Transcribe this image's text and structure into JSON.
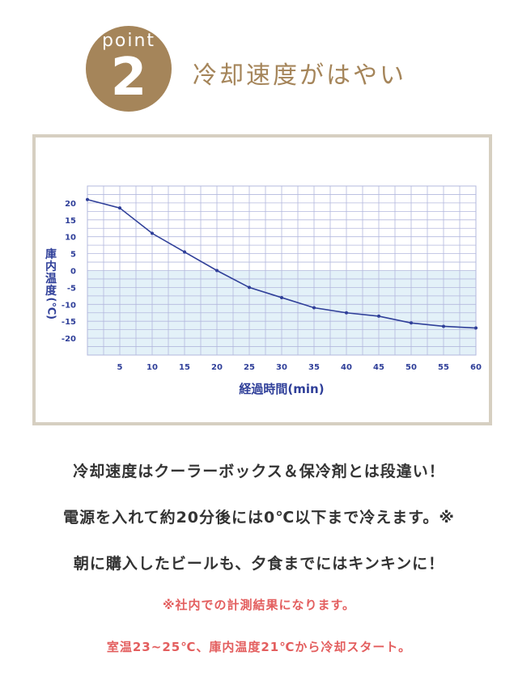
{
  "badge": {
    "word": "point",
    "number": "2"
  },
  "heading": "冷却速度がはやい",
  "chart_data": {
    "type": "line",
    "xlabel": "経過時間(min)",
    "ylabel_main": "庫内温度",
    "ylabel_unit": "(℃)",
    "x_ticks": [
      "5",
      "10",
      "15",
      "20",
      "25",
      "30",
      "35",
      "40",
      "45",
      "50",
      "55",
      "60"
    ],
    "y_ticks": [
      "20",
      "15",
      "10",
      "5",
      "0",
      "-5",
      "-10",
      "-15",
      "-20"
    ],
    "xlim": [
      0,
      60
    ],
    "ylim": [
      -25,
      25
    ],
    "grid": true,
    "shaded_below_zero": true,
    "series": [
      {
        "x": [
          0,
          5,
          10,
          15,
          20,
          25,
          30,
          35,
          40,
          45,
          50,
          55,
          60
        ],
        "y": [
          21,
          18.5,
          11,
          5.5,
          0,
          -5,
          -8,
          -11,
          -12.5,
          -13.5,
          -15.5,
          -16.5,
          -17
        ]
      }
    ]
  },
  "texts": {
    "line1": "冷却速度はクーラーボックス＆保冷剤とは段違い！",
    "line2": "電源を入れて約20分後には0℃以下まで冷えます。※",
    "line3": "朝に購入したビールも、夕食までにはキンキンに！",
    "note1": "※社内での計測結果になります。",
    "note2": "室温23~25℃、庫内温度21℃から冷却スタート。"
  },
  "colors": {
    "accent": "#a5855a",
    "line": "#2f3f99",
    "shade": "#e3f1f8",
    "grid": "#b3b8dd",
    "frame": "#d6cfc1",
    "note": "#e35e5e"
  }
}
